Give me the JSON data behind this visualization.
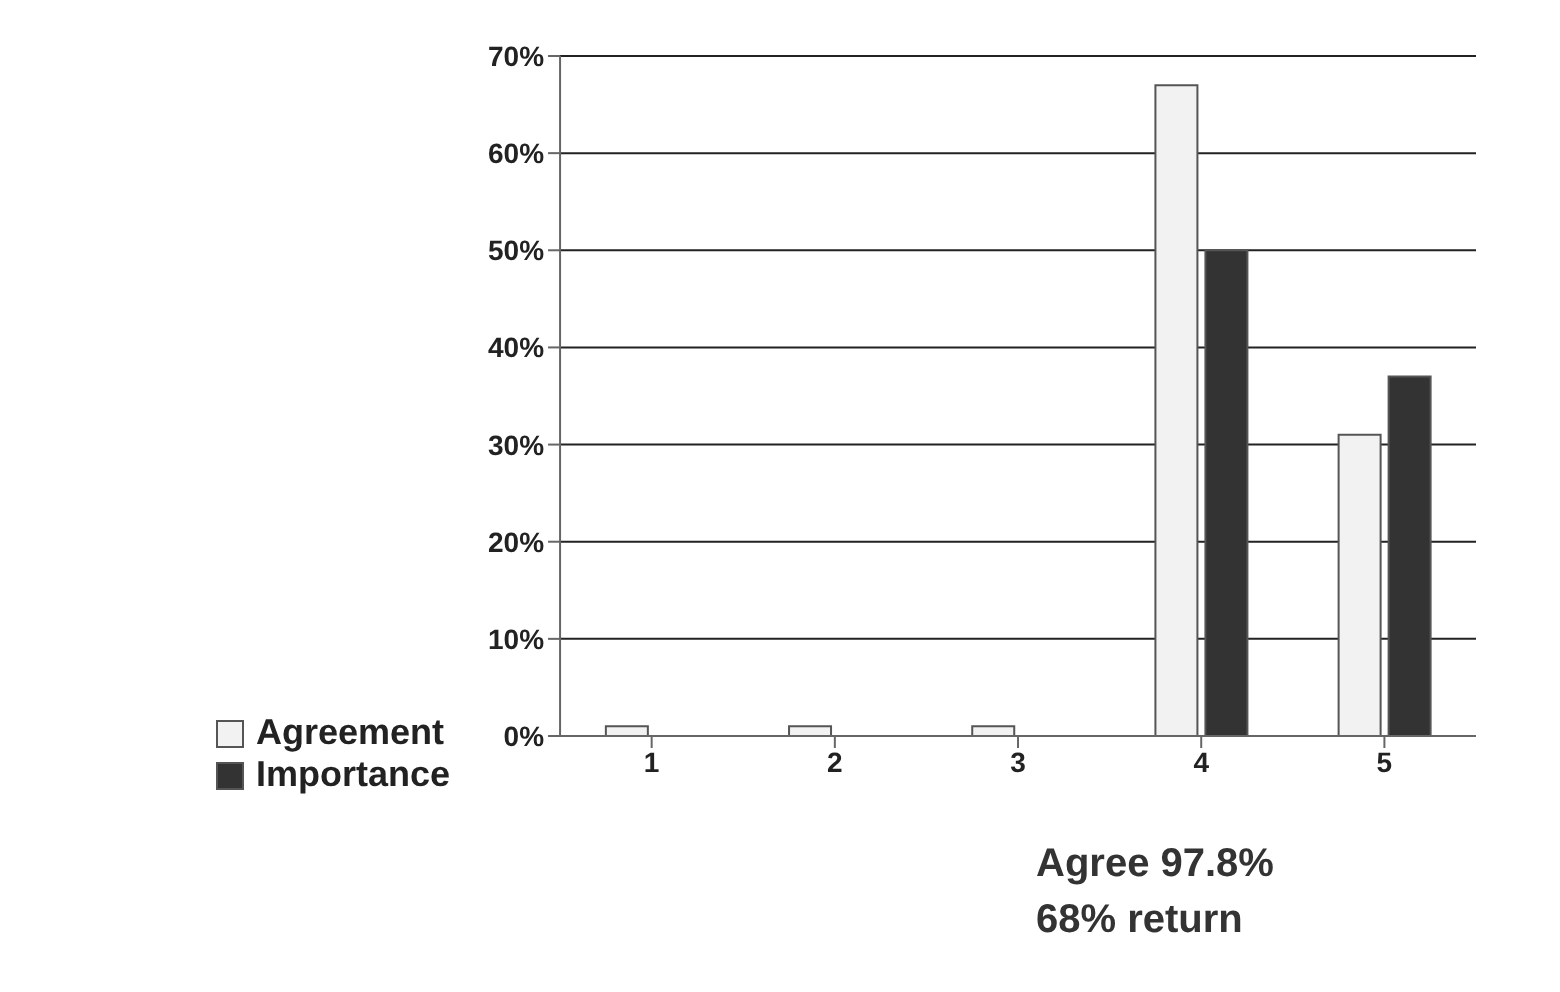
{
  "chart_data": {
    "type": "bar",
    "categories": [
      "1",
      "2",
      "3",
      "4",
      "5"
    ],
    "series": [
      {
        "name": "Agreement",
        "color": "#f2f2f2",
        "values": [
          1,
          1,
          1,
          67,
          31
        ]
      },
      {
        "name": "Importance",
        "color": "#333333",
        "values": [
          0,
          0,
          0,
          50,
          37
        ]
      }
    ],
    "ylim": [
      0,
      70
    ],
    "yticks": [
      {
        "value": 0,
        "label": "0%"
      },
      {
        "value": 10,
        "label": "10%"
      },
      {
        "value": 20,
        "label": "20%"
      },
      {
        "value": 30,
        "label": "30%"
      },
      {
        "value": 40,
        "label": "40%"
      },
      {
        "value": 50,
        "label": "50%"
      },
      {
        "value": 60,
        "label": "60%"
      },
      {
        "value": 70,
        "label": "70%"
      }
    ],
    "grid": "y",
    "legend": "bottom left",
    "annotations": [
      "Agree 97.8%",
      "68% return"
    ]
  }
}
